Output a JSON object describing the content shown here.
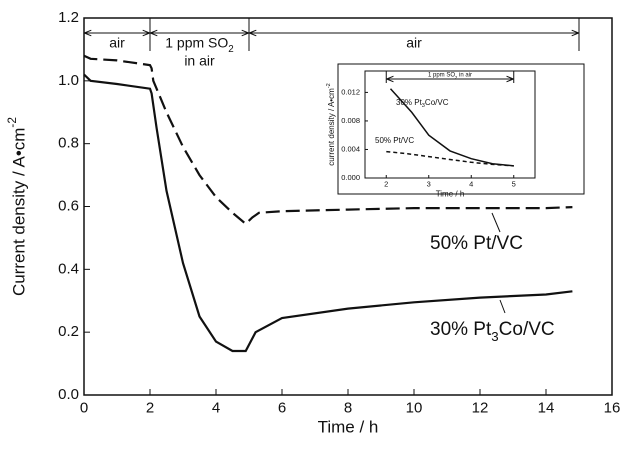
{
  "chart_data": [
    {
      "type": "line",
      "xlabel": "Time / h",
      "ylabel": "Current density / A•cm-2",
      "xlim": [
        0,
        16
      ],
      "xticks": [
        0,
        2,
        4,
        6,
        8,
        10,
        12,
        14,
        16
      ],
      "ylim": [
        0,
        1.2
      ],
      "yticks": [
        {
          "value": 0,
          "label": "0.0"
        },
        0.2,
        0.4,
        0.6,
        0.8,
        {
          "value": 1,
          "label": "1.0"
        },
        1.2
      ],
      "regions": [
        {
          "label": [
            "air"
          ],
          "start": 0,
          "end": 2
        },
        {
          "label": [
            "1 ppm SO2",
            "in air"
          ],
          "start": 2,
          "end": 5
        },
        {
          "label": [
            "air"
          ],
          "start": 5,
          "end": 15
        }
      ],
      "series": [
        {
          "name": "50% Pt/VC",
          "color": "#111111",
          "dash": true,
          "x": [
            0,
            0.2,
            1,
            2,
            2.05,
            2.1,
            2.5,
            3,
            3.5,
            4,
            4.5,
            4.9,
            5.1,
            5.3,
            6,
            8,
            10,
            12,
            14,
            14.8
          ],
          "values": [
            1.08,
            1.07,
            1.065,
            1.05,
            1.04,
            1.0,
            0.9,
            0.79,
            0.7,
            0.63,
            0.58,
            0.545,
            0.565,
            0.58,
            0.585,
            0.59,
            0.595,
            0.595,
            0.595,
            0.598
          ]
        },
        {
          "name": "30% Pt3Co/VC",
          "color": "#111111",
          "dash": false,
          "x": [
            0,
            0.2,
            1,
            2,
            2.05,
            2.2,
            2.5,
            3,
            3.5,
            4,
            4.5,
            4.9,
            5.0,
            5.2,
            6,
            8,
            10,
            12,
            14,
            14.8
          ],
          "values": [
            1.02,
            1.0,
            0.99,
            0.975,
            0.96,
            0.85,
            0.65,
            0.42,
            0.25,
            0.17,
            0.14,
            0.14,
            0.16,
            0.2,
            0.245,
            0.275,
            0.295,
            0.31,
            0.32,
            0.33
          ]
        }
      ]
    },
    {
      "type": "line",
      "xlabel": "Time / h",
      "ylabel": "current density / A•cm-2",
      "xlim": [
        1.5,
        5.5
      ],
      "xticks": [
        2,
        3,
        4,
        5
      ],
      "ylim": [
        0,
        0.015
      ],
      "yticks": [
        {
          "value": 0,
          "label": "0.000"
        },
        0.004,
        0.008,
        0.012
      ],
      "regions": [
        {
          "label": [
            "1 ppm SO2 in air"
          ],
          "start": 2,
          "end": 5
        }
      ],
      "series": [
        {
          "name": "30% Pt3Co/VC",
          "color": "#111111",
          "dash": false,
          "x": [
            2.1,
            2.3,
            2.6,
            3,
            3.5,
            4,
            4.5,
            5
          ],
          "values": [
            0.0125,
            0.0112,
            0.0092,
            0.006,
            0.0038,
            0.0027,
            0.002,
            0.0017
          ]
        },
        {
          "name": "50% Pt/VC",
          "color": "#111111",
          "dash": true,
          "x": [
            2,
            2.5,
            3,
            3.5,
            4,
            4.5,
            5
          ],
          "values": [
            0.0037,
            0.0034,
            0.003,
            0.0026,
            0.0022,
            0.0019,
            0.0017
          ]
        }
      ]
    }
  ]
}
